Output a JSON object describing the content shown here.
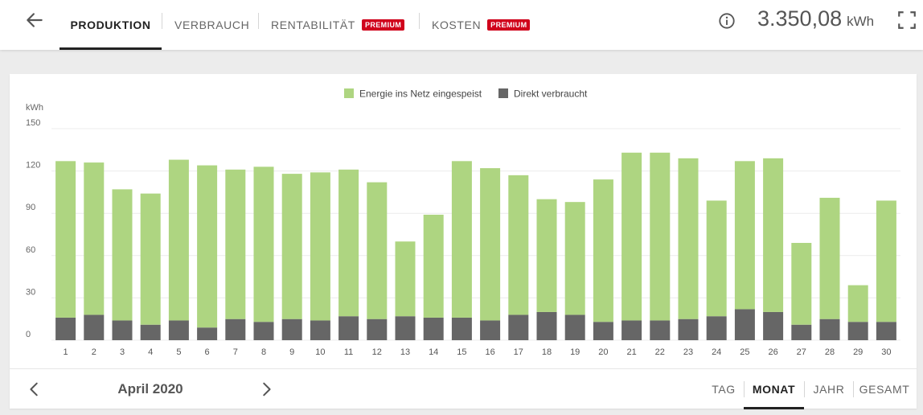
{
  "header": {
    "back_icon": "arrow-left-icon",
    "tabs": [
      {
        "label": "PRODUKTION",
        "active": true,
        "badge": ""
      },
      {
        "label": "VERBRAUCH",
        "active": false,
        "badge": ""
      },
      {
        "label": "RENTABILITÄT",
        "active": false,
        "badge": "PREMIUM"
      },
      {
        "label": "KOSTEN",
        "active": false,
        "badge": "PREMIUM"
      }
    ],
    "info_icon": "info-icon",
    "total_value": "3.350,08",
    "total_unit": "kWh",
    "fullscreen_icon": "fullscreen-icon",
    "badge_color": "#d0021b"
  },
  "chart_data": {
    "type": "bar",
    "stacked": true,
    "ylabel": "kWh",
    "ylim": [
      0,
      150
    ],
    "yticks": [
      0,
      30,
      60,
      90,
      120,
      150
    ],
    "grid": true,
    "legend_position": "top-center",
    "categories": [
      "1",
      "2",
      "3",
      "4",
      "5",
      "6",
      "7",
      "8",
      "9",
      "10",
      "11",
      "12",
      "13",
      "14",
      "15",
      "16",
      "17",
      "18",
      "19",
      "20",
      "21",
      "22",
      "23",
      "24",
      "25",
      "26",
      "27",
      "28",
      "29",
      "30"
    ],
    "series": [
      {
        "name": "Direkt verbraucht",
        "color": "#666666",
        "values": [
          16,
          18,
          14,
          11,
          14,
          9,
          15,
          13,
          15,
          14,
          17,
          15,
          17,
          16,
          16,
          14,
          18,
          20,
          18,
          13,
          14,
          14,
          15,
          17,
          22,
          20,
          11,
          15,
          13,
          13
        ]
      },
      {
        "name": "Energie ins Netz eingespeist",
        "color": "#aed581",
        "values": [
          111,
          108,
          93,
          93,
          114,
          115,
          106,
          110,
          103,
          105,
          104,
          97,
          53,
          73,
          111,
          108,
          99,
          80,
          80,
          101,
          119,
          119,
          114,
          82,
          105,
          109,
          58,
          86,
          26,
          86
        ]
      }
    ],
    "legend_order": [
      "Energie ins Netz eingespeist",
      "Direkt verbraucht"
    ]
  },
  "footer": {
    "prev_icon": "chevron-left-icon",
    "period": "April 2020",
    "next_icon": "chevron-right-icon",
    "range_tabs": [
      {
        "label": "TAG",
        "active": false
      },
      {
        "label": "MONAT",
        "active": true
      },
      {
        "label": "JAHR",
        "active": false
      },
      {
        "label": "GESAMT",
        "active": false
      }
    ]
  }
}
